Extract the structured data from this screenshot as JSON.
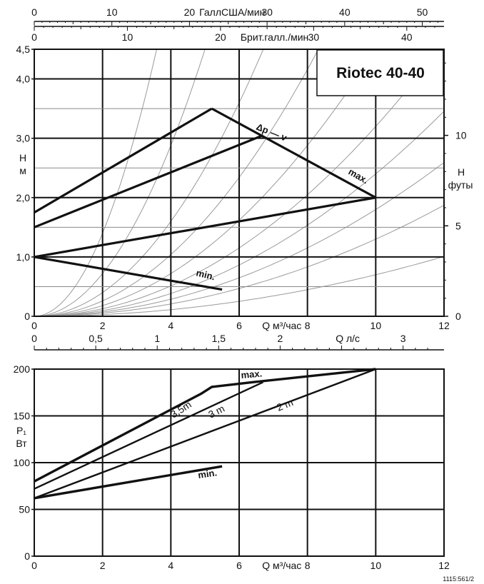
{
  "chart_data": [
    {
      "type": "line",
      "title": "Riotec 40-40",
      "axes": {
        "x": {
          "label": "Q м³/час",
          "range": [
            0,
            12
          ],
          "ticks": [
            "0",
            "2",
            "4",
            "6",
            "8",
            "10",
            "12"
          ]
        },
        "y_left": {
          "label_line1": "H",
          "label_line2": "м",
          "range": [
            0,
            4.5
          ],
          "ticks": [
            "0",
            "1,0",
            "2,0",
            "3,0",
            "4,0",
            "4,5"
          ]
        },
        "y_right": {
          "label_line1": "H",
          "label_line2": "футы",
          "range": [
            0,
            14.76
          ],
          "ticks": [
            "0",
            "5",
            "10"
          ]
        },
        "x_top_1": {
          "label": "ГаллСША/мин",
          "range": [
            0,
            52.8
          ],
          "ticks": [
            "0",
            "10",
            "20",
            "30",
            "40",
            "50"
          ]
        },
        "x_top_2": {
          "label": "Брит.галл./мин",
          "range": [
            0,
            44.0
          ],
          "ticks": [
            "0",
            "10",
            "20",
            "30",
            "40"
          ]
        },
        "x_bottom_2": {
          "label": "Q л/с",
          "range": [
            0,
            3.333
          ],
          "ticks": [
            "0",
            "0,5",
            "1",
            "1,5",
            "2",
            "3"
          ]
        }
      },
      "grid": true,
      "series": [
        {
          "name": "max.",
          "x": [
            5.2,
            10.0
          ],
          "y": [
            3.5,
            2.0
          ]
        },
        {
          "name": "Δp — v",
          "x": [
            0,
            5.2
          ],
          "y": [
            1.75,
            3.5
          ]
        },
        {
          "x": [
            0,
            6.7
          ],
          "y": [
            1.5,
            3.05
          ]
        },
        {
          "x": [
            0,
            10.0
          ],
          "y": [
            1.0,
            2.0
          ]
        },
        {
          "name": "min.",
          "x": [
            0,
            5.5
          ],
          "y": [
            1.0,
            0.45
          ]
        }
      ],
      "system_curves_k": [
        0.35,
        0.18,
        0.1,
        0.065,
        0.045,
        0.032,
        0.024,
        0.018,
        0.013,
        0.007
      ],
      "curve_labels": {
        "dp": "Δp — v",
        "max": "max.",
        "min": "min."
      }
    },
    {
      "type": "line",
      "axes": {
        "x": {
          "label": "Q м³/час",
          "range": [
            0,
            12
          ],
          "ticks": [
            "0",
            "2",
            "4",
            "6",
            "8",
            "10",
            "12"
          ]
        },
        "y": {
          "label_line1": "P₁",
          "label_line2": "Вт",
          "range": [
            0,
            200
          ],
          "ticks": [
            "0",
            "50",
            "100",
            "150",
            "200"
          ]
        }
      },
      "grid": true,
      "series": [
        {
          "name": "max.",
          "x": [
            0,
            4.9,
            5.2,
            6.4,
            10.0
          ],
          "y": [
            80,
            174,
            181,
            186,
            200
          ]
        },
        {
          "name": "3,5m",
          "x": [
            0,
            4.9
          ],
          "y": [
            80,
            174
          ]
        },
        {
          "name": "3 m",
          "x": [
            0,
            6.7
          ],
          "y": [
            72,
            186
          ]
        },
        {
          "name": "2 m",
          "x": [
            0,
            10.0
          ],
          "y": [
            62,
            200
          ]
        },
        {
          "name": "min.",
          "x": [
            0,
            5.5
          ],
          "y": [
            62,
            96
          ]
        }
      ],
      "curve_labels": {
        "max": "max.",
        "m35": "3,5m",
        "m3": "3 m",
        "m2": "2 m",
        "min": "min."
      }
    }
  ],
  "footer_code": "1115:561/2",
  "colors": {
    "line": "#111111",
    "grid": "#111111",
    "system_curve": "#9a9a9a",
    "background": "#ffffff"
  }
}
